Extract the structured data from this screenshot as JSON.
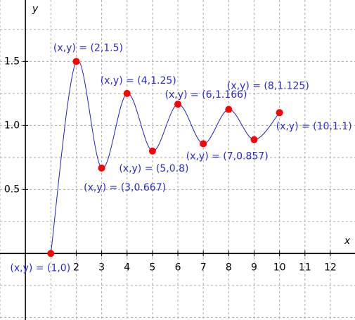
{
  "chart_data": {
    "type": "line",
    "x": [
      1,
      2,
      3,
      4,
      5,
      6,
      7,
      8,
      9,
      10
    ],
    "series": [
      {
        "color": "#2020c0",
        "marker_color": "#ff0000",
        "values": [
          0,
          1.5,
          0.667,
          1.25,
          0.8,
          1.166,
          0.857,
          1.125,
          0.889,
          1.1
        ]
      }
    ],
    "point_labels": [
      "(x,y) = (1,0)",
      "(x,y) = (2,1.5)",
      "(x,y) = (3,0.667)",
      "(x,y) = (4,1.25)",
      "(x,y) = (5,0.8)",
      "(x,y) = (6,1.166)",
      "(x,y) = (7,0.857)",
      "(x,y) = (8,1.125)",
      null,
      "(x,y) = (10,1.1)"
    ],
    "x_label": "x",
    "y_label": "y",
    "xlim": [
      -1,
      12.97
    ],
    "ylim": [
      -0.52,
      1.98
    ],
    "xticks": [
      2,
      3,
      4,
      5,
      6,
      7,
      8,
      9,
      10,
      11,
      12
    ],
    "yticks": [
      0.5,
      {
        "value": 1,
        "label": "1.0"
      },
      1.5
    ],
    "grid": {
      "x_step": 1,
      "y_step": 0.25
    }
  }
}
